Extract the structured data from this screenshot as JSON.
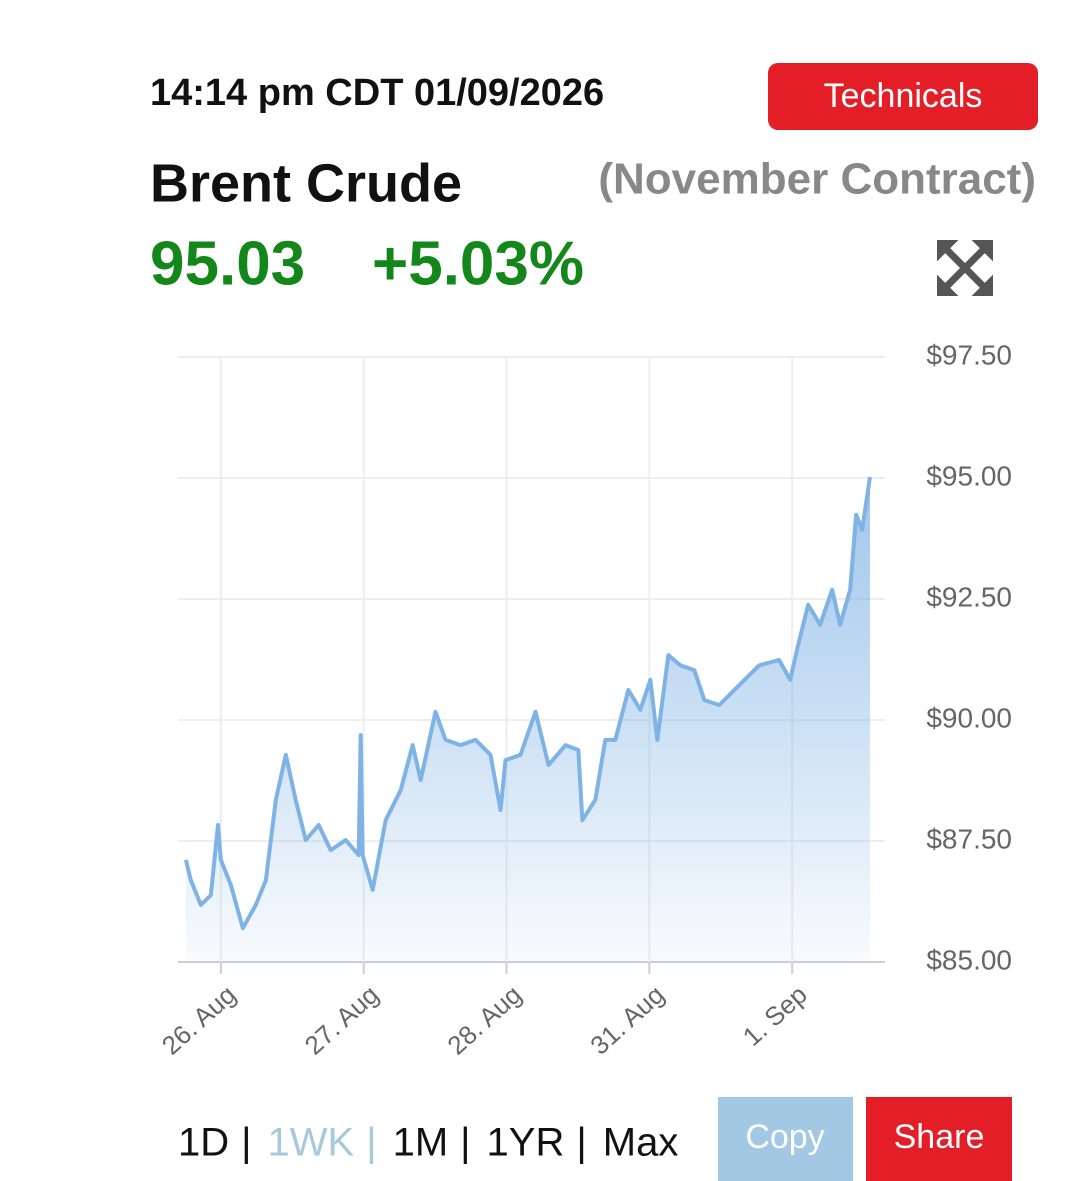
{
  "header": {
    "timestamp": "14:14 pm CDT 01/09/2026",
    "technicals_button": "Technicals",
    "instrument": "Brent Crude",
    "contract": "(November Contract)",
    "price": "95.03",
    "change": "+5.03%"
  },
  "chart_data": {
    "type": "area",
    "color": "#7fb2e5",
    "grid": true,
    "x": [
      -0.245,
      -0.21,
      -0.14,
      -0.07,
      -0.02,
      0,
      0.07,
      0.154,
      0.245,
      0.315,
      0.385,
      0.455,
      0.524,
      0.594,
      0.685,
      0.769,
      0.874,
      0.965,
      0.979,
      0.993,
      1.063,
      1.154,
      1.259,
      1.343,
      1.399,
      1.503,
      1.573,
      1.678,
      1.783,
      1.888,
      1.958,
      1.993,
      2.098,
      2.203,
      2.294,
      2.413,
      2.503,
      2.531,
      2.622,
      2.692,
      2.762,
      2.853,
      2.937,
      3.007,
      3.056,
      3.133,
      3.217,
      3.315,
      3.385,
      3.49,
      3.629,
      3.769,
      3.909,
      3.986,
      4.042,
      4.112,
      4.196,
      4.28,
      4.336,
      4.406,
      4.448,
      4.49,
      4.545
    ],
    "values": [
      87.11,
      86.69,
      86.18,
      86.38,
      87.83,
      87.11,
      86.59,
      85.7,
      86.18,
      86.69,
      88.35,
      89.28,
      88.35,
      87.52,
      87.83,
      87.31,
      87.52,
      87.21,
      89.69,
      87.21,
      86.49,
      87.93,
      88.55,
      89.48,
      88.76,
      90.17,
      89.59,
      89.48,
      89.59,
      89.28,
      88.14,
      89.17,
      89.28,
      90.17,
      89.07,
      89.48,
      89.38,
      87.93,
      88.35,
      89.59,
      89.59,
      90.62,
      90.21,
      90.83,
      89.59,
      91.34,
      91.13,
      91.03,
      90.41,
      90.31,
      90.72,
      91.13,
      91.24,
      90.83,
      91.55,
      92.38,
      91.97,
      92.69,
      91.97,
      92.69,
      94.24,
      93.93,
      95.02
    ],
    "xlim": [
      -0.3,
      4.65
    ],
    "xticks": [
      {
        "value": 0,
        "label": "26. Aug"
      },
      {
        "value": 1,
        "label": "27. Aug"
      },
      {
        "value": 2,
        "label": "28. Aug"
      },
      {
        "value": 3,
        "label": "31. Aug"
      },
      {
        "value": 4,
        "label": "1. Sep"
      }
    ],
    "ylim": [
      85,
      97.5
    ],
    "yticks": [
      {
        "value": 85,
        "label": "$85.00"
      },
      {
        "value": 87.5,
        "label": "$87.50"
      },
      {
        "value": 90,
        "label": "$90.00"
      },
      {
        "value": 92.5,
        "label": "$92.50"
      },
      {
        "value": 95,
        "label": "$95.00"
      },
      {
        "value": 97.5,
        "label": "$97.50"
      }
    ]
  },
  "range_options": [
    "1D",
    "1WK",
    "1M",
    "1YR",
    "Max"
  ],
  "separator": "|",
  "buttons": {
    "copy": "Copy",
    "share": "Share"
  }
}
